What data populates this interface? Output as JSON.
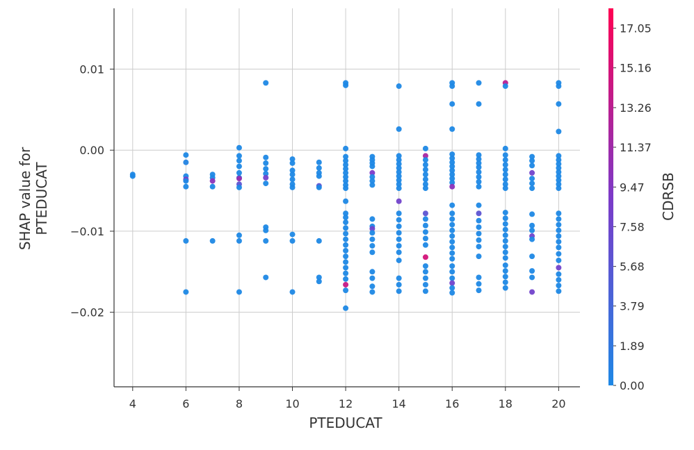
{
  "chart_data": {
    "type": "scatter",
    "title": "",
    "xlabel": "PTEDUCAT",
    "ylabel": "SHAP value for\nPTEDUCAT",
    "xlim": [
      3.3,
      20.8
    ],
    "ylim": [
      -0.0292,
      0.0175
    ],
    "x_ticks": [
      4,
      6,
      8,
      10,
      12,
      14,
      16,
      18,
      20
    ],
    "y_ticks": [
      0.01,
      0.0,
      -0.01,
      -0.02
    ],
    "y_tick_labels": [
      "0.01",
      "0.00",
      "−0.01",
      "−0.02"
    ],
    "grid": true,
    "colorbar": {
      "label": "CDRSB",
      "min": 0.0,
      "max": 18.0,
      "ticks": [
        0.0,
        1.89,
        3.79,
        5.68,
        7.58,
        9.47,
        11.37,
        13.26,
        15.16,
        17.05
      ],
      "tick_labels": [
        "0.00",
        "1.89",
        "3.79",
        "5.68",
        "7.58",
        "9.47",
        "11.37",
        "13.26",
        "15.16",
        "17.05"
      ],
      "colors": [
        "#1e88e5",
        "#7c3ac8",
        "#ff0052"
      ]
    },
    "points": [
      {
        "x": 4,
        "y": -0.003,
        "c": 0
      },
      {
        "x": 4,
        "y": -0.0032,
        "c": 0
      },
      {
        "x": 6,
        "y": -0.0006,
        "c": 0
      },
      {
        "x": 6,
        "y": -0.0015,
        "c": 0.5
      },
      {
        "x": 6,
        "y": -0.0032,
        "c": 0
      },
      {
        "x": 6,
        "y": -0.0036,
        "c": 9
      },
      {
        "x": 6,
        "y": -0.0038,
        "c": 0
      },
      {
        "x": 6,
        "y": -0.0045,
        "c": 0
      },
      {
        "x": 6,
        "y": -0.0112,
        "c": 0
      },
      {
        "x": 6,
        "y": -0.0175,
        "c": 0
      },
      {
        "x": 7,
        "y": -0.003,
        "c": 0
      },
      {
        "x": 7,
        "y": -0.0034,
        "c": 0
      },
      {
        "x": 7,
        "y": -0.0038,
        "c": 10
      },
      {
        "x": 7,
        "y": -0.0045,
        "c": 0
      },
      {
        "x": 7,
        "y": -0.0112,
        "c": 0
      },
      {
        "x": 8,
        "y": 0.0003,
        "c": 0
      },
      {
        "x": 8,
        "y": -0.0007,
        "c": 0
      },
      {
        "x": 8,
        "y": -0.0013,
        "c": 0
      },
      {
        "x": 8,
        "y": -0.002,
        "c": 0
      },
      {
        "x": 8,
        "y": -0.0028,
        "c": 0
      },
      {
        "x": 8,
        "y": -0.0034,
        "c": 0
      },
      {
        "x": 8,
        "y": -0.0035,
        "c": 11
      },
      {
        "x": 8,
        "y": -0.0042,
        "c": 6
      },
      {
        "x": 8,
        "y": -0.0046,
        "c": 0
      },
      {
        "x": 8,
        "y": -0.0105,
        "c": 0
      },
      {
        "x": 8,
        "y": -0.0112,
        "c": 0
      },
      {
        "x": 8,
        "y": -0.0175,
        "c": 0
      },
      {
        "x": 9,
        "y": 0.0083,
        "c": 0
      },
      {
        "x": 9,
        "y": -0.0009,
        "c": 0
      },
      {
        "x": 9,
        "y": -0.0016,
        "c": 0
      },
      {
        "x": 9,
        "y": -0.0023,
        "c": 0
      },
      {
        "x": 9,
        "y": -0.0029,
        "c": 0
      },
      {
        "x": 9,
        "y": -0.0034,
        "c": 8
      },
      {
        "x": 9,
        "y": -0.0041,
        "c": 0
      },
      {
        "x": 9,
        "y": -0.0095,
        "c": 0
      },
      {
        "x": 9,
        "y": -0.0099,
        "c": 0
      },
      {
        "x": 9,
        "y": -0.0112,
        "c": 0
      },
      {
        "x": 9,
        "y": -0.0157,
        "c": 0
      },
      {
        "x": 10,
        "y": -0.0011,
        "c": 0
      },
      {
        "x": 10,
        "y": -0.0016,
        "c": 0
      },
      {
        "x": 10,
        "y": -0.0025,
        "c": 0
      },
      {
        "x": 10,
        "y": -0.003,
        "c": 0
      },
      {
        "x": 10,
        "y": -0.0036,
        "c": 0
      },
      {
        "x": 10,
        "y": -0.0042,
        "c": 0
      },
      {
        "x": 10,
        "y": -0.0046,
        "c": 0
      },
      {
        "x": 10,
        "y": -0.0104,
        "c": 0
      },
      {
        "x": 10,
        "y": -0.0112,
        "c": 0
      },
      {
        "x": 10,
        "y": -0.0175,
        "c": 0
      },
      {
        "x": 11,
        "y": -0.0015,
        "c": 0
      },
      {
        "x": 11,
        "y": -0.0022,
        "c": 0
      },
      {
        "x": 11,
        "y": -0.0028,
        "c": 0
      },
      {
        "x": 11,
        "y": -0.0032,
        "c": 0
      },
      {
        "x": 11,
        "y": -0.0044,
        "c": 6
      },
      {
        "x": 11,
        "y": -0.0046,
        "c": 0
      },
      {
        "x": 11,
        "y": -0.0112,
        "c": 0
      },
      {
        "x": 11,
        "y": -0.0157,
        "c": 0
      },
      {
        "x": 11,
        "y": -0.0162,
        "c": 0
      },
      {
        "x": 12,
        "y": 0.0083,
        "c": 0
      },
      {
        "x": 12,
        "y": 0.008,
        "c": 0
      },
      {
        "x": 12,
        "y": 0.0002,
        "c": 0
      },
      {
        "x": 12,
        "y": -0.0008,
        "c": 0
      },
      {
        "x": 12,
        "y": -0.0013,
        "c": 0
      },
      {
        "x": 12,
        "y": -0.0018,
        "c": 0
      },
      {
        "x": 12,
        "y": -0.0023,
        "c": 0
      },
      {
        "x": 12,
        "y": -0.0028,
        "c": 0
      },
      {
        "x": 12,
        "y": -0.0033,
        "c": 0
      },
      {
        "x": 12,
        "y": -0.0038,
        "c": 0
      },
      {
        "x": 12,
        "y": -0.0043,
        "c": 0
      },
      {
        "x": 12,
        "y": -0.0047,
        "c": 0
      },
      {
        "x": 12,
        "y": -0.0063,
        "c": 0
      },
      {
        "x": 12,
        "y": -0.0078,
        "c": 0
      },
      {
        "x": 12,
        "y": -0.0083,
        "c": 0
      },
      {
        "x": 12,
        "y": -0.0089,
        "c": 0
      },
      {
        "x": 12,
        "y": -0.0096,
        "c": 0
      },
      {
        "x": 12,
        "y": -0.0103,
        "c": 0
      },
      {
        "x": 12,
        "y": -0.011,
        "c": 0
      },
      {
        "x": 12,
        "y": -0.0117,
        "c": 0
      },
      {
        "x": 12,
        "y": -0.0124,
        "c": 0
      },
      {
        "x": 12,
        "y": -0.0131,
        "c": 0
      },
      {
        "x": 12,
        "y": -0.0138,
        "c": 0
      },
      {
        "x": 12,
        "y": -0.0145,
        "c": 0
      },
      {
        "x": 12,
        "y": -0.0152,
        "c": 0
      },
      {
        "x": 12,
        "y": -0.0159,
        "c": 0
      },
      {
        "x": 12,
        "y": -0.0166,
        "c": 14
      },
      {
        "x": 12,
        "y": -0.0173,
        "c": 0
      },
      {
        "x": 12,
        "y": -0.0195,
        "c": 0
      },
      {
        "x": 13,
        "y": -0.0008,
        "c": 0
      },
      {
        "x": 13,
        "y": -0.0012,
        "c": 0
      },
      {
        "x": 13,
        "y": -0.0016,
        "c": 0
      },
      {
        "x": 13,
        "y": -0.002,
        "c": 0
      },
      {
        "x": 13,
        "y": -0.0028,
        "c": 9
      },
      {
        "x": 13,
        "y": -0.0033,
        "c": 0
      },
      {
        "x": 13,
        "y": -0.0038,
        "c": 0
      },
      {
        "x": 13,
        "y": -0.0043,
        "c": 0
      },
      {
        "x": 13,
        "y": -0.0085,
        "c": 0
      },
      {
        "x": 13,
        "y": -0.0094,
        "c": 0
      },
      {
        "x": 13,
        "y": -0.0097,
        "c": 8
      },
      {
        "x": 13,
        "y": -0.0102,
        "c": 0
      },
      {
        "x": 13,
        "y": -0.011,
        "c": 0
      },
      {
        "x": 13,
        "y": -0.0118,
        "c": 0
      },
      {
        "x": 13,
        "y": -0.0126,
        "c": 0
      },
      {
        "x": 13,
        "y": -0.015,
        "c": 0
      },
      {
        "x": 13,
        "y": -0.0158,
        "c": 0
      },
      {
        "x": 13,
        "y": -0.0168,
        "c": 0
      },
      {
        "x": 13,
        "y": -0.0175,
        "c": 0
      },
      {
        "x": 14,
        "y": 0.0079,
        "c": 0
      },
      {
        "x": 14,
        "y": 0.0026,
        "c": 0
      },
      {
        "x": 14,
        "y": -0.0007,
        "c": 0
      },
      {
        "x": 14,
        "y": -0.0012,
        "c": 0
      },
      {
        "x": 14,
        "y": -0.0017,
        "c": 0
      },
      {
        "x": 14,
        "y": -0.0022,
        "c": 0
      },
      {
        "x": 14,
        "y": -0.0027,
        "c": 0
      },
      {
        "x": 14,
        "y": -0.0032,
        "c": 0
      },
      {
        "x": 14,
        "y": -0.0037,
        "c": 0
      },
      {
        "x": 14,
        "y": -0.0042,
        "c": 0
      },
      {
        "x": 14,
        "y": -0.0047,
        "c": 0
      },
      {
        "x": 14,
        "y": -0.0063,
        "c": 8
      },
      {
        "x": 14,
        "y": -0.0078,
        "c": 0
      },
      {
        "x": 14,
        "y": -0.0086,
        "c": 0
      },
      {
        "x": 14,
        "y": -0.0094,
        "c": 0
      },
      {
        "x": 14,
        "y": -0.0102,
        "c": 0
      },
      {
        "x": 14,
        "y": -0.011,
        "c": 0
      },
      {
        "x": 14,
        "y": -0.0118,
        "c": 0
      },
      {
        "x": 14,
        "y": -0.0126,
        "c": 0
      },
      {
        "x": 14,
        "y": -0.0136,
        "c": 0
      },
      {
        "x": 14,
        "y": -0.0158,
        "c": 0
      },
      {
        "x": 14,
        "y": -0.0166,
        "c": 0
      },
      {
        "x": 14,
        "y": -0.0174,
        "c": 0
      },
      {
        "x": 15,
        "y": 0.0002,
        "c": 0
      },
      {
        "x": 15,
        "y": -0.0007,
        "c": 12
      },
      {
        "x": 15,
        "y": -0.0012,
        "c": 0
      },
      {
        "x": 15,
        "y": -0.0018,
        "c": 0
      },
      {
        "x": 15,
        "y": -0.0024,
        "c": 0
      },
      {
        "x": 15,
        "y": -0.003,
        "c": 0
      },
      {
        "x": 15,
        "y": -0.0036,
        "c": 0
      },
      {
        "x": 15,
        "y": -0.0042,
        "c": 0
      },
      {
        "x": 15,
        "y": -0.0047,
        "c": 0
      },
      {
        "x": 15,
        "y": -0.0078,
        "c": 6
      },
      {
        "x": 15,
        "y": -0.0085,
        "c": 0
      },
      {
        "x": 15,
        "y": -0.0093,
        "c": 0
      },
      {
        "x": 15,
        "y": -0.0101,
        "c": 0
      },
      {
        "x": 15,
        "y": -0.0109,
        "c": 0
      },
      {
        "x": 15,
        "y": -0.0117,
        "c": 0
      },
      {
        "x": 15,
        "y": -0.0132,
        "c": 15
      },
      {
        "x": 15,
        "y": -0.0143,
        "c": 0
      },
      {
        "x": 15,
        "y": -0.015,
        "c": 0
      },
      {
        "x": 15,
        "y": -0.0158,
        "c": 0
      },
      {
        "x": 15,
        "y": -0.0166,
        "c": 0
      },
      {
        "x": 15,
        "y": -0.0174,
        "c": 0
      },
      {
        "x": 16,
        "y": 0.0083,
        "c": 0
      },
      {
        "x": 16,
        "y": 0.0079,
        "c": 0
      },
      {
        "x": 16,
        "y": 0.0057,
        "c": 0
      },
      {
        "x": 16,
        "y": 0.0026,
        "c": 0
      },
      {
        "x": 16,
        "y": -0.0005,
        "c": 0
      },
      {
        "x": 16,
        "y": -0.001,
        "c": 0
      },
      {
        "x": 16,
        "y": -0.0015,
        "c": 0
      },
      {
        "x": 16,
        "y": -0.002,
        "c": 0
      },
      {
        "x": 16,
        "y": -0.0025,
        "c": 0
      },
      {
        "x": 16,
        "y": -0.003,
        "c": 0
      },
      {
        "x": 16,
        "y": -0.0035,
        "c": 0
      },
      {
        "x": 16,
        "y": -0.004,
        "c": 0
      },
      {
        "x": 16,
        "y": -0.0045,
        "c": 10
      },
      {
        "x": 16,
        "y": -0.0068,
        "c": 0
      },
      {
        "x": 16,
        "y": -0.0078,
        "c": 0
      },
      {
        "x": 16,
        "y": -0.0085,
        "c": 0
      },
      {
        "x": 16,
        "y": -0.0092,
        "c": 0
      },
      {
        "x": 16,
        "y": -0.0099,
        "c": 0
      },
      {
        "x": 16,
        "y": -0.0106,
        "c": 0
      },
      {
        "x": 16,
        "y": -0.0113,
        "c": 0
      },
      {
        "x": 16,
        "y": -0.012,
        "c": 0
      },
      {
        "x": 16,
        "y": -0.0127,
        "c": 0
      },
      {
        "x": 16,
        "y": -0.0134,
        "c": 0
      },
      {
        "x": 16,
        "y": -0.0143,
        "c": 0
      },
      {
        "x": 16,
        "y": -0.015,
        "c": 0
      },
      {
        "x": 16,
        "y": -0.0158,
        "c": 0
      },
      {
        "x": 16,
        "y": -0.0164,
        "c": 8
      },
      {
        "x": 16,
        "y": -0.017,
        "c": 0
      },
      {
        "x": 16,
        "y": -0.0176,
        "c": 0
      },
      {
        "x": 17,
        "y": 0.0083,
        "c": 0
      },
      {
        "x": 17,
        "y": 0.0057,
        "c": 0
      },
      {
        "x": 17,
        "y": -0.0006,
        "c": 0
      },
      {
        "x": 17,
        "y": -0.0011,
        "c": 0
      },
      {
        "x": 17,
        "y": -0.0016,
        "c": 0
      },
      {
        "x": 17,
        "y": -0.0021,
        "c": 0
      },
      {
        "x": 17,
        "y": -0.0027,
        "c": 0
      },
      {
        "x": 17,
        "y": -0.0033,
        "c": 0
      },
      {
        "x": 17,
        "y": -0.0039,
        "c": 0
      },
      {
        "x": 17,
        "y": -0.0045,
        "c": 0
      },
      {
        "x": 17,
        "y": -0.0068,
        "c": 0
      },
      {
        "x": 17,
        "y": -0.0078,
        "c": 6
      },
      {
        "x": 17,
        "y": -0.0087,
        "c": 0
      },
      {
        "x": 17,
        "y": -0.0095,
        "c": 0
      },
      {
        "x": 17,
        "y": -0.0103,
        "c": 0
      },
      {
        "x": 17,
        "y": -0.0111,
        "c": 0
      },
      {
        "x": 17,
        "y": -0.0119,
        "c": 0
      },
      {
        "x": 17,
        "y": -0.0131,
        "c": 0
      },
      {
        "x": 17,
        "y": -0.0157,
        "c": 0
      },
      {
        "x": 17,
        "y": -0.0165,
        "c": 0
      },
      {
        "x": 17,
        "y": -0.0173,
        "c": 0
      },
      {
        "x": 18,
        "y": 0.0083,
        "c": 13
      },
      {
        "x": 18,
        "y": 0.0079,
        "c": 0
      },
      {
        "x": 18,
        "y": 0.0002,
        "c": 0
      },
      {
        "x": 18,
        "y": -0.0006,
        "c": 0
      },
      {
        "x": 18,
        "y": -0.0012,
        "c": 0
      },
      {
        "x": 18,
        "y": -0.0018,
        "c": 0
      },
      {
        "x": 18,
        "y": -0.0024,
        "c": 0
      },
      {
        "x": 18,
        "y": -0.003,
        "c": 0
      },
      {
        "x": 18,
        "y": -0.0036,
        "c": 0
      },
      {
        "x": 18,
        "y": -0.0042,
        "c": 0
      },
      {
        "x": 18,
        "y": -0.0047,
        "c": 0
      },
      {
        "x": 18,
        "y": -0.0077,
        "c": 0
      },
      {
        "x": 18,
        "y": -0.0084,
        "c": 0
      },
      {
        "x": 18,
        "y": -0.0091,
        "c": 0
      },
      {
        "x": 18,
        "y": -0.0098,
        "c": 0
      },
      {
        "x": 18,
        "y": -0.0105,
        "c": 0
      },
      {
        "x": 18,
        "y": -0.0112,
        "c": 0
      },
      {
        "x": 18,
        "y": -0.0119,
        "c": 0
      },
      {
        "x": 18,
        "y": -0.0126,
        "c": 0
      },
      {
        "x": 18,
        "y": -0.0133,
        "c": 0
      },
      {
        "x": 18,
        "y": -0.0142,
        "c": 0
      },
      {
        "x": 18,
        "y": -0.0149,
        "c": 0
      },
      {
        "x": 18,
        "y": -0.0156,
        "c": 0
      },
      {
        "x": 18,
        "y": -0.0163,
        "c": 0
      },
      {
        "x": 18,
        "y": -0.017,
        "c": 0
      },
      {
        "x": 19,
        "y": -0.0008,
        "c": 0
      },
      {
        "x": 19,
        "y": -0.0013,
        "c": 0
      },
      {
        "x": 19,
        "y": -0.0019,
        "c": 0
      },
      {
        "x": 19,
        "y": -0.0028,
        "c": 8
      },
      {
        "x": 19,
        "y": -0.0035,
        "c": 0
      },
      {
        "x": 19,
        "y": -0.0041,
        "c": 0
      },
      {
        "x": 19,
        "y": -0.0047,
        "c": 0
      },
      {
        "x": 19,
        "y": -0.0079,
        "c": 0
      },
      {
        "x": 19,
        "y": -0.0093,
        "c": 0
      },
      {
        "x": 19,
        "y": -0.0099,
        "c": 0
      },
      {
        "x": 19,
        "y": -0.0106,
        "c": 8
      },
      {
        "x": 19,
        "y": -0.011,
        "c": 0
      },
      {
        "x": 19,
        "y": -0.0131,
        "c": 0
      },
      {
        "x": 19,
        "y": -0.0149,
        "c": 0
      },
      {
        "x": 19,
        "y": -0.0157,
        "c": 0
      },
      {
        "x": 19,
        "y": -0.0175,
        "c": 8
      },
      {
        "x": 20,
        "y": 0.0083,
        "c": 0
      },
      {
        "x": 20,
        "y": 0.0079,
        "c": 0
      },
      {
        "x": 20,
        "y": 0.0057,
        "c": 0
      },
      {
        "x": 20,
        "y": 0.0023,
        "c": 0
      },
      {
        "x": 20,
        "y": -0.0007,
        "c": 0
      },
      {
        "x": 20,
        "y": -0.0012,
        "c": 0
      },
      {
        "x": 20,
        "y": -0.0017,
        "c": 0
      },
      {
        "x": 20,
        "y": -0.0022,
        "c": 0
      },
      {
        "x": 20,
        "y": -0.0027,
        "c": 0
      },
      {
        "x": 20,
        "y": -0.0032,
        "c": 0
      },
      {
        "x": 20,
        "y": -0.0037,
        "c": 0
      },
      {
        "x": 20,
        "y": -0.0042,
        "c": 0
      },
      {
        "x": 20,
        "y": -0.0047,
        "c": 0
      },
      {
        "x": 20,
        "y": -0.0078,
        "c": 0
      },
      {
        "x": 20,
        "y": -0.0085,
        "c": 0
      },
      {
        "x": 20,
        "y": -0.0092,
        "c": 0
      },
      {
        "x": 20,
        "y": -0.0099,
        "c": 0
      },
      {
        "x": 20,
        "y": -0.0106,
        "c": 0
      },
      {
        "x": 20,
        "y": -0.0113,
        "c": 0
      },
      {
        "x": 20,
        "y": -0.012,
        "c": 0
      },
      {
        "x": 20,
        "y": -0.0128,
        "c": 0
      },
      {
        "x": 20,
        "y": -0.0136,
        "c": 0
      },
      {
        "x": 20,
        "y": -0.0145,
        "c": 8
      },
      {
        "x": 20,
        "y": -0.0153,
        "c": 0
      },
      {
        "x": 20,
        "y": -0.016,
        "c": 0
      },
      {
        "x": 20,
        "y": -0.0167,
        "c": 0
      },
      {
        "x": 20,
        "y": -0.0174,
        "c": 0
      }
    ]
  }
}
